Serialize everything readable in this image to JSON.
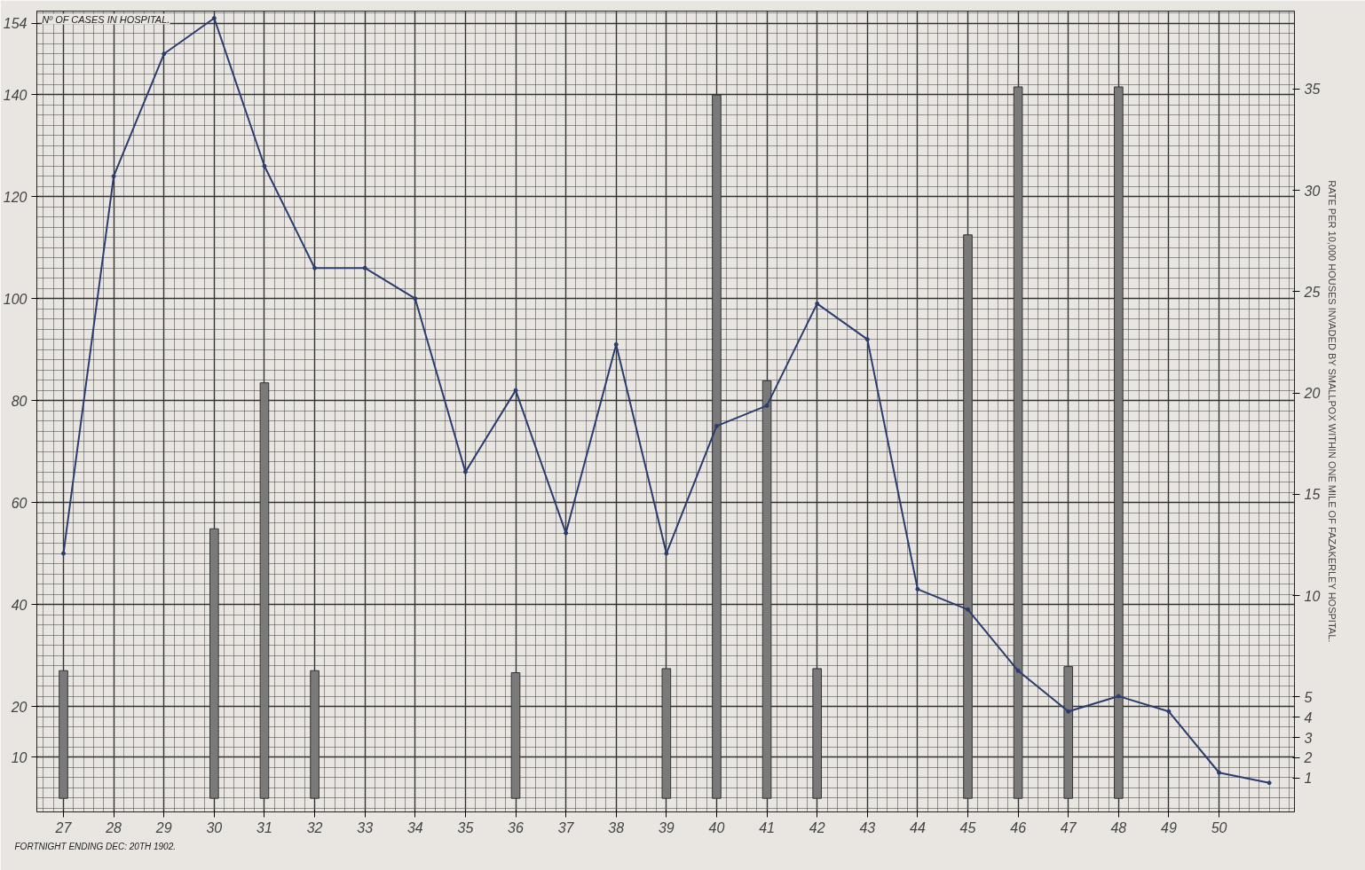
{
  "chart_data": {
    "type": "bar",
    "xlabel": "FORTNIGHT ENDING DEC: 20TH 1902.",
    "ylabel": "Nº OF CASES IN HOSPITAL.",
    "y2label": "RATE PER 10,000 HOUSES INVADED BY SMALLPOX WITHIN ONE MILE OF FAZAKERLEY HOSPITAL.",
    "xlim": [
      26.47,
      51.5
    ],
    "xticks": [
      27,
      28,
      29,
      30,
      31,
      32,
      33,
      34,
      35,
      36,
      37,
      38,
      39,
      40,
      41,
      42,
      43,
      44,
      45,
      46,
      47,
      48,
      49,
      50
    ],
    "ylim": [
      -0.7,
      156.4
    ],
    "yticks": [
      {
        "value": 10,
        "label": "10"
      },
      {
        "value": 20,
        "label": "20"
      },
      {
        "value": 40,
        "label": "40"
      },
      {
        "value": 60,
        "label": "60"
      },
      {
        "value": 80,
        "label": "80"
      },
      {
        "value": 100,
        "label": "100"
      },
      {
        "value": 120,
        "label": "120"
      },
      {
        "value": 140,
        "label": "140"
      },
      154
    ],
    "y2lim": [
      -0.67,
      38.84
    ],
    "y2ticks": [
      1,
      2,
      3,
      4,
      5,
      10,
      15,
      20,
      25,
      30,
      35
    ],
    "grid": true,
    "series": [
      {
        "axis": "y2",
        "color": "#7a7a7a",
        "x": [
          27,
          30,
          31,
          32,
          36,
          39,
          40,
          41,
          42,
          45,
          46,
          47,
          48
        ],
        "values": [
          6.3,
          13.3,
          20.5,
          6.3,
          6.2,
          6.4,
          34.7,
          20.6,
          6.4,
          27.8,
          35.1,
          6.5,
          35.1
        ]
      },
      {
        "type": "line",
        "color": "#2b3d6e",
        "marker": "circle",
        "x": [
          27,
          28,
          29,
          30,
          31,
          32,
          33,
          34,
          35,
          36,
          37,
          38,
          39,
          40,
          41,
          42,
          43,
          44,
          45,
          46,
          47,
          48,
          49,
          50,
          51
        ],
        "values": [
          50,
          124,
          148,
          155,
          126,
          106,
          106,
          100,
          66,
          82,
          54,
          91,
          50,
          75,
          79,
          99,
          92,
          43,
          39,
          27,
          19,
          22,
          19,
          7,
          5
        ]
      }
    ]
  }
}
